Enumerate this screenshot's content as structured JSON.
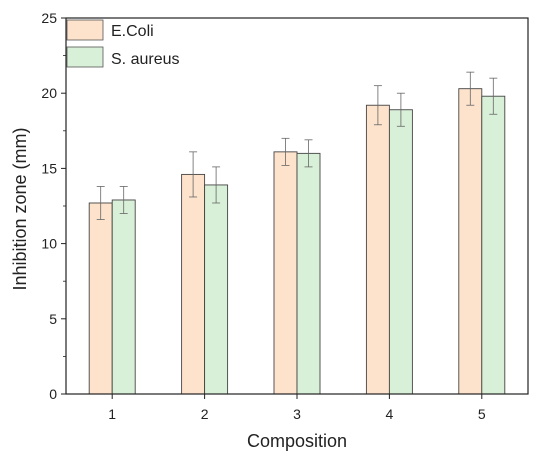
{
  "chart_data": {
    "type": "bar",
    "title": "",
    "xlabel": "Composition",
    "ylabel": "Inhibition zone (mm)",
    "categories": [
      "1",
      "2",
      "3",
      "4",
      "5"
    ],
    "ylim": [
      0,
      25
    ],
    "yticks": [
      0,
      5,
      10,
      15,
      20,
      25
    ],
    "grid": false,
    "legend_position": "top-left",
    "series": [
      {
        "name": "E.Coli",
        "color": "#fde3cc",
        "values": [
          12.7,
          14.6,
          16.1,
          19.2,
          20.3
        ],
        "errors": [
          1.1,
          1.5,
          0.9,
          1.3,
          1.1
        ]
      },
      {
        "name": "S. aureus",
        "color": "#d8f0d8",
        "values": [
          12.9,
          13.9,
          16.0,
          18.9,
          19.8
        ],
        "errors": [
          0.9,
          1.2,
          0.9,
          1.1,
          1.2
        ]
      }
    ]
  }
}
